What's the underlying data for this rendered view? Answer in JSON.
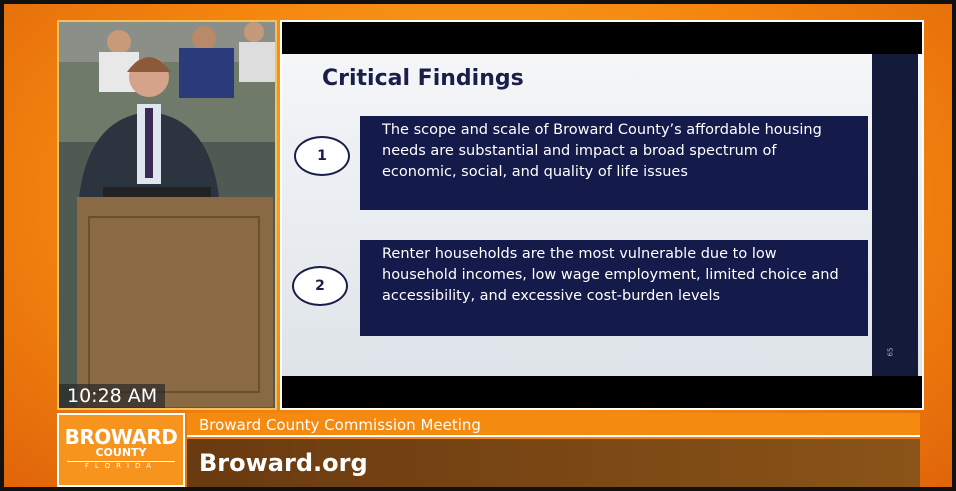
{
  "video": {
    "timestamp": "10:28 AM"
  },
  "slide": {
    "title": "Critical Findings",
    "findings": [
      {
        "number": "1",
        "text": "The scope and scale of Broward County’s affordable housing needs are substantial and impact a broad spectrum of economic, social, and quality of life issues"
      },
      {
        "number": "2",
        "text": "Renter households are the most vulnerable due to low household incomes, low wage employment, limited choice and accessibility, and excessive cost-burden levels"
      }
    ],
    "page_number": "65"
  },
  "banner": {
    "logo": {
      "name": "BROWARD",
      "county": "COUNTY",
      "state": "FLORIDA"
    },
    "meeting": "Broward County Commission Meeting",
    "website": "Broward.org"
  }
}
